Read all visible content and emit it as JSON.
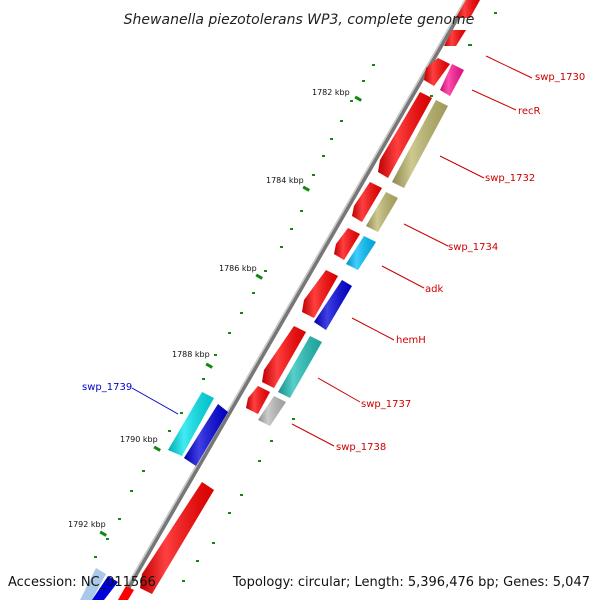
{
  "title": "Shewanella piezotolerans WP3, complete genome",
  "footer": {
    "accession": "Accession: NC_011566",
    "topology": "Topology: circular; Length: 5,396,476 bp; Genes: 5,047"
  },
  "ticks": [
    "1782 kbp",
    "1784 kbp",
    "1786 kbp",
    "1788 kbp",
    "1790 kbp",
    "1792 kbp"
  ],
  "genes": [
    {
      "label": "swp_1730",
      "color": "#cc0000"
    },
    {
      "label": "recR",
      "color": "#cc0000"
    },
    {
      "label": "swp_1732",
      "color": "#cc0000"
    },
    {
      "label": "swp_1734",
      "color": "#cc0000"
    },
    {
      "label": "adk",
      "color": "#cc0000"
    },
    {
      "label": "hemH",
      "color": "#cc0000"
    },
    {
      "label": "swp_1737",
      "color": "#cc0000"
    },
    {
      "label": "swp_1738",
      "color": "#cc0000"
    },
    {
      "label": "swp_1739",
      "color": "#0000cc"
    }
  ],
  "colors": {
    "cds": "#ff0000",
    "trna": "#ff1493",
    "rrna": "#bdb76b",
    "cyan": "#00bfff",
    "teal": "#20b2aa",
    "blue": "#0000dd",
    "gray": "#bbbbbb",
    "backbone": "#777777",
    "dots": "#118811"
  }
}
